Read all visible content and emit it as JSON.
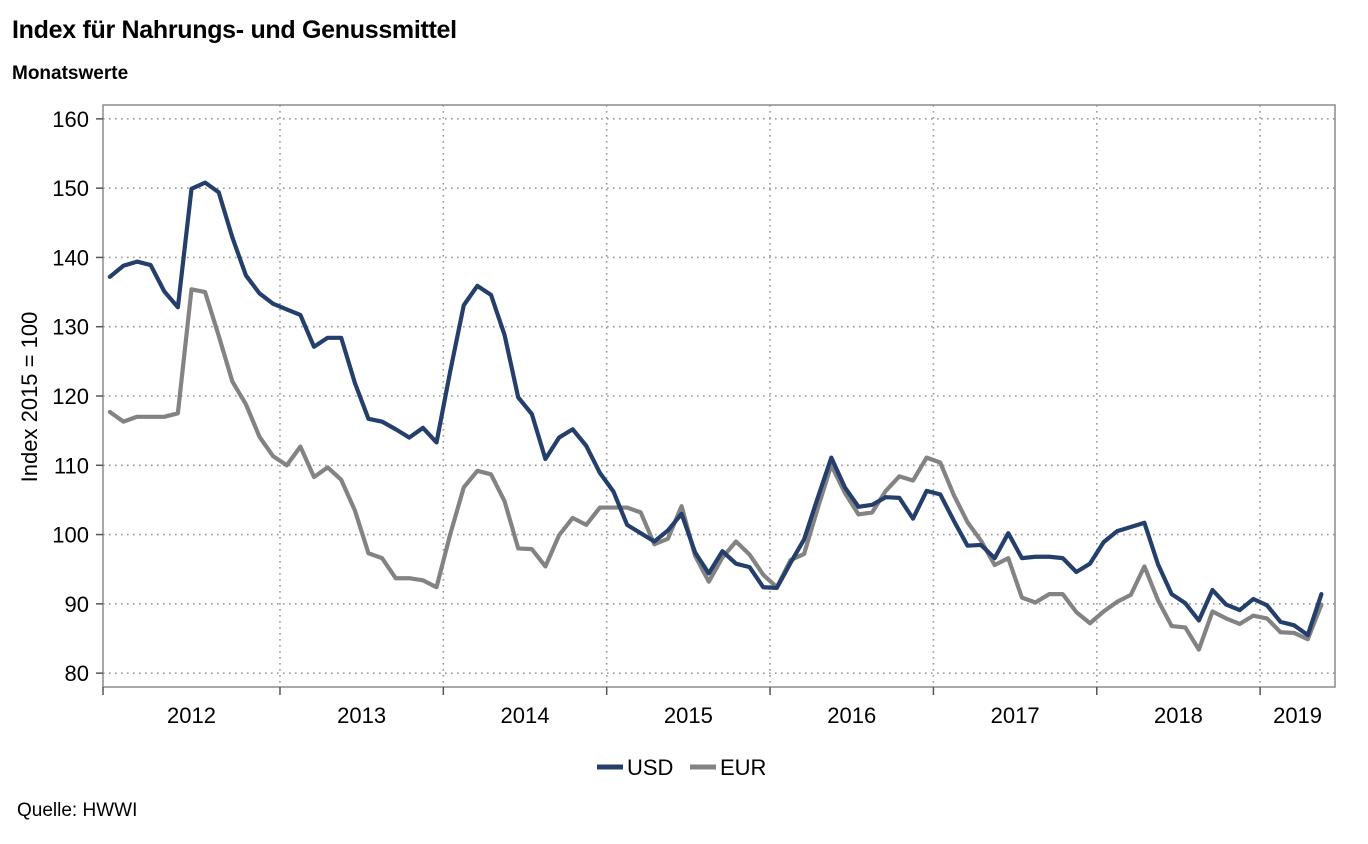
{
  "header": {
    "title": "Index für Nahrungs- und Genussmittel",
    "subtitle": "Monatswerte"
  },
  "footer": {
    "source": "Quelle: HWWI"
  },
  "chart_data": {
    "type": "line",
    "ylabel": "Index 2015 = 100",
    "xlabel": "",
    "ylim": [
      78,
      162
    ],
    "yticks": [
      80,
      90,
      100,
      110,
      120,
      130,
      140,
      150,
      160
    ],
    "x_start": "2011-12",
    "x_labels": [
      "2012",
      "2013",
      "2014",
      "2015",
      "2016",
      "2017",
      "2018",
      "2019"
    ],
    "grid": true,
    "legend_position": "bottom-center",
    "series": [
      {
        "name": "USD",
        "color": "#243f6b",
        "values": [
          137.2,
          138.8,
          139.4,
          138.9,
          135.1,
          132.8,
          149.9,
          150.8,
          149.4,
          142.9,
          137.4,
          134.8,
          133.3,
          132.5,
          131.7,
          127.1,
          128.4,
          128.4,
          121.9,
          116.7,
          116.3,
          115.2,
          114.0,
          115.4,
          113.3,
          123.5,
          133.1,
          135.9,
          134.6,
          128.8,
          119.8,
          117.4,
          110.9,
          114.0,
          115.2,
          112.8,
          108.9,
          106.2,
          101.4,
          100.2,
          99.0,
          100.6,
          103.0,
          97.4,
          94.4,
          97.6,
          95.8,
          95.3,
          92.4,
          92.3,
          95.9,
          99.3,
          105.3,
          111.1,
          106.8,
          104.0,
          104.3,
          105.4,
          105.3,
          102.3,
          106.3,
          105.8,
          102.0,
          98.4,
          98.5,
          96.6,
          100.2,
          96.6,
          96.8,
          96.8,
          96.6,
          94.6,
          95.8,
          98.9,
          100.5,
          101.1,
          101.7,
          95.7,
          91.4,
          90.1,
          87.6,
          92.0,
          89.9,
          89.1,
          90.7,
          89.8,
          87.4,
          86.9,
          85.5,
          91.4
        ]
      },
      {
        "name": "EUR",
        "color": "#838383",
        "values": [
          117.7,
          116.3,
          117.0,
          117.0,
          117.0,
          117.5,
          135.4,
          135.0,
          128.7,
          122.1,
          118.8,
          114.1,
          111.3,
          110.0,
          112.7,
          108.3,
          109.7,
          107.9,
          103.5,
          97.3,
          96.6,
          93.7,
          93.7,
          93.4,
          92.4,
          100.0,
          106.8,
          109.2,
          108.7,
          104.8,
          98.0,
          97.9,
          95.4,
          99.9,
          102.4,
          101.4,
          103.9,
          103.9,
          103.9,
          103.2,
          98.6,
          99.4,
          104.1,
          96.9,
          93.2,
          96.7,
          99.0,
          97.1,
          94.2,
          92.4,
          96.3,
          97.2,
          103.8,
          110.0,
          106.0,
          102.9,
          103.2,
          106.3,
          108.4,
          107.8,
          111.1,
          110.4,
          105.7,
          101.8,
          99.1,
          95.6,
          96.6,
          90.9,
          90.2,
          91.4,
          91.4,
          88.8,
          87.2,
          88.9,
          90.3,
          91.3,
          95.4,
          90.5,
          86.8,
          86.6,
          83.4,
          88.9,
          87.9,
          87.1,
          88.3,
          87.9,
          85.9,
          85.8,
          84.9,
          89.9
        ]
      }
    ]
  }
}
